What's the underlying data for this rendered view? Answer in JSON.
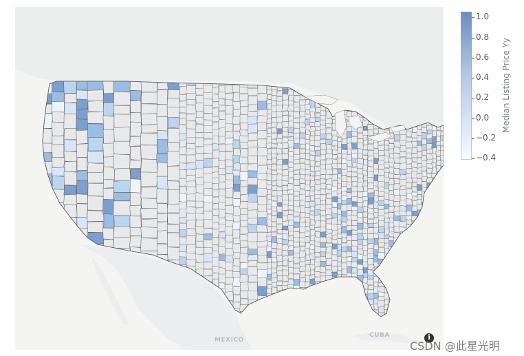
{
  "map": {
    "labels": {
      "mexico": "MEXICO",
      "cuba": "CUBA"
    },
    "land_color": "#e8e9ea",
    "water_color": "#f4f4f2",
    "border_color": "#5a5a5a",
    "fill_colors": [
      "#eef4fb",
      "#d9e6f5",
      "#bcd5ee",
      "#9cbde3",
      "#7d9fcc"
    ]
  },
  "colorbar": {
    "title": "Median Listing Price Yy",
    "ticks": [
      "1.0",
      "0.8",
      "0.6",
      "0.4",
      "0.2",
      "0.0",
      "−0.2",
      "−0.4"
    ],
    "colors": [
      "#f7fbff",
      "#6c8ec1"
    ]
  },
  "attribution": {
    "icon_label": "i"
  },
  "watermark": "CSDN @此星光明"
}
